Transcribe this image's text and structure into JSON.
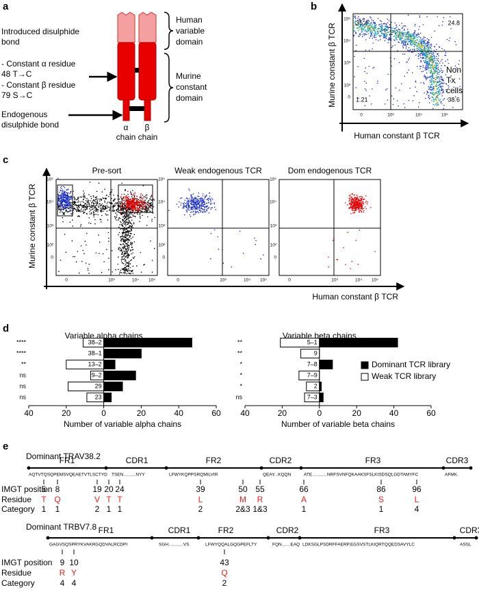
{
  "panel_a": {
    "label": "a",
    "introduced_bond": [
      "Introduced disulphide",
      "bond"
    ],
    "mutations": [
      "- Constant α residue",
      "48 T→C",
      "- Constant β residue",
      "79 S→C"
    ],
    "endogenous_bond": [
      "Endogenous",
      "disulphide bond"
    ],
    "human_domain": [
      "Human",
      "variable",
      "domain"
    ],
    "murine_domain": [
      "Murine",
      "constant",
      "domain"
    ],
    "chain_labels": [
      "α",
      "β"
    ],
    "chain_caption": "chain chain"
  },
  "panel_b": {
    "label": "b",
    "y_label": "Murine constant β TCR",
    "x_label": "Human constant β TCR",
    "yticks": [
      "10⁵",
      "10⁴",
      "10³",
      "10²",
      0
    ],
    "xticks": [
      0,
      "10³",
      "10⁴",
      "10⁵"
    ],
    "quadrants": [
      35.4,
      24.8,
      1.21,
      38.6
    ],
    "annotation": [
      "Non",
      "Tx",
      "cells"
    ]
  },
  "panel_c": {
    "label": "c",
    "y_label": "Murine constant β TCR",
    "x_label": "Human constant β TCR",
    "plots": [
      {
        "title": "Pre-sort"
      },
      {
        "title": "Weak endogenous TCR"
      },
      {
        "title": "Dom endogenous TCR"
      }
    ],
    "yticks": [
      "10⁵",
      "10⁴",
      "10³",
      "10²",
      0
    ],
    "xticks": [
      0,
      "10³",
      "10⁴",
      "10⁵"
    ]
  },
  "panel_d": {
    "label": "d",
    "charts": [
      {
        "type": "bar",
        "title": "Variable alpha chains",
        "x_label": "Number of variable alpha chains",
        "categories": [
          "38–2",
          "38–1",
          "13–2",
          "9–2",
          "29",
          "23"
        ],
        "significance": [
          "****",
          "****",
          "**",
          "ns",
          "ns",
          "ns"
        ],
        "series": [
          {
            "name": "Dominant TCR library",
            "color": "#000000",
            "values": [
              47,
              20,
              6,
              17,
              10,
              4
            ]
          },
          {
            "name": "Weak TCR library",
            "color": "#ffffff",
            "values": [
              -11,
              0,
              -20,
              -7,
              -19,
              -9
            ]
          }
        ],
        "xlim": [
          -40,
          60
        ],
        "xticks": [
          {
            "value": -40,
            "label": "40"
          },
          {
            "value": -20,
            "label": "20"
          },
          0,
          20,
          40,
          60
        ]
      },
      {
        "type": "bar",
        "title": "Variable beta chains",
        "x_label": "Number of variable beta chains",
        "categories": [
          "5–1",
          "9",
          "7–8",
          "7–9",
          "2",
          "7–3"
        ],
        "significance": [
          "**",
          "**",
          "*",
          "*",
          "*",
          "ns"
        ],
        "series": [
          {
            "name": "Dominant TCR library",
            "color": "#000000",
            "values": [
              42,
              0,
              7,
              0,
              1,
              2
            ]
          },
          {
            "name": "Weak TCR library",
            "color": "#ffffff",
            "values": [
              -21,
              -10,
              0,
              -11,
              -7,
              -8
            ]
          }
        ],
        "xlim": [
          -40,
          60
        ],
        "xticks": [
          {
            "value": -40,
            "label": "40"
          },
          {
            "value": -20,
            "label": "20"
          },
          0,
          20,
          40,
          60
        ]
      }
    ]
  },
  "panel_e": {
    "label": "e",
    "alignments": [
      {
        "title": "Dominant TRAV38.2",
        "regions": [
          "FR1",
          "CDR1",
          "FR2",
          "CDR2",
          "FR3",
          "CDR3"
        ],
        "sequences": [
          "AQTVTQSQPEMSVQEAETVTLSCTYD",
          "TSEN..........NYY",
          "LFWYKQPPSRQMILVIR",
          "QEAY...KQQN",
          "ATE............NRFSVNFQKAAKSFSLKISDSQLGDTAMYFC",
          "AFMK."
        ],
        "row_labels": [
          "IMGT position",
          "Residue",
          "Category"
        ],
        "sites": [
          {
            "position": 5,
            "residue": "T",
            "category": 1
          },
          {
            "position": 8,
            "residue": "Q",
            "category": 1
          },
          {
            "position": 19,
            "residue": "V",
            "category": 2
          },
          {
            "position": 20,
            "residue": "T",
            "category": 1
          },
          {
            "position": 24,
            "residue": "T",
            "category": 1
          },
          {
            "position": 39,
            "residue": "L",
            "category": 2
          },
          {
            "position": 50,
            "residue": "M",
            "category": "2&3"
          },
          {
            "position": 55,
            "residue": "R",
            "category": "1&3"
          },
          {
            "position": 66,
            "residue": "A",
            "category": 1
          },
          {
            "position": 86,
            "residue": "S",
            "category": 1
          },
          {
            "position": 96,
            "residue": "L",
            "category": 4
          }
        ]
      },
      {
        "title": "Dominant TRBV7.8",
        "regions": [
          "FR1",
          "CDR1",
          "FR2",
          "CDR2",
          "FR3",
          "CDR3"
        ],
        "sequences": [
          "GAGVSQSPRYKVAKRGQDVALRCDPI",
          "SGH............VS",
          "LFWYQQALGQGPEFLTY",
          "FQN.......EAQ",
          "LDKSGLPSDRFFAERP.EGSVSTLKIQRTQQEDSAVYLC",
          "ASSL"
        ],
        "row_labels": [
          "IMGT position",
          "Residue",
          "Category"
        ],
        "sites": [
          {
            "position": 9,
            "residue": "R",
            "category": 4
          },
          {
            "position": 10,
            "residue": "Y",
            "category": 4
          },
          {
            "position": 43,
            "residue": "Q",
            "category": 2
          }
        ]
      }
    ]
  }
}
